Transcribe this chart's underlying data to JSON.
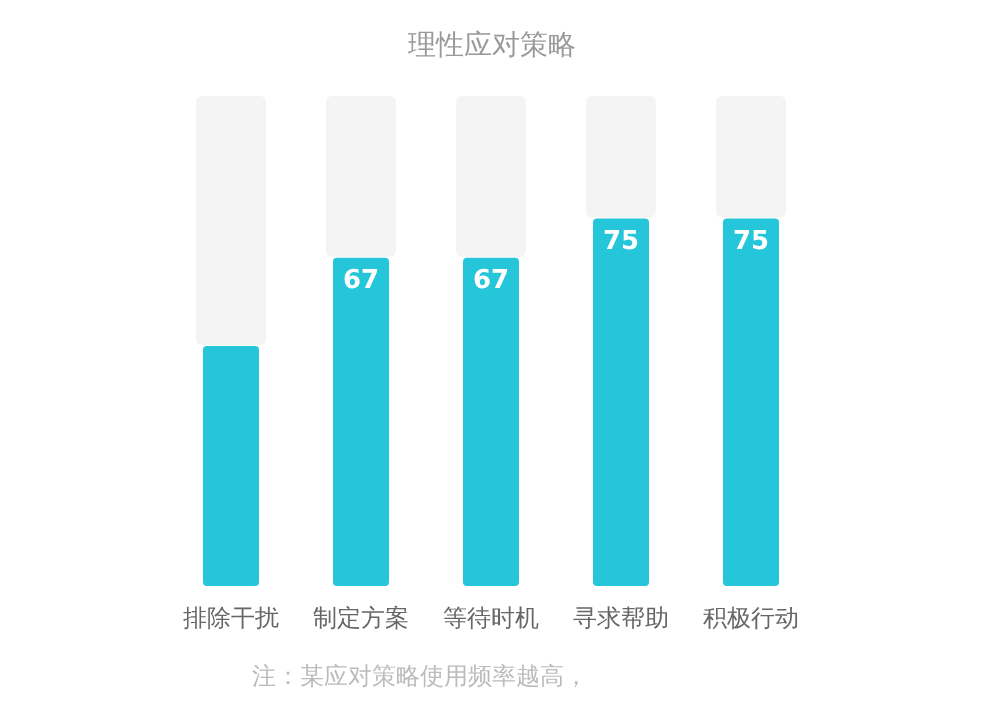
{
  "chart_data": {
    "type": "bar",
    "title": "理性应对策略",
    "categories": [
      "排除干扰",
      "制定方案",
      "等待时机",
      "寻求帮助",
      "积极行动"
    ],
    "values": [
      49,
      67,
      67,
      75,
      75
    ],
    "value_labels": [
      null,
      "67",
      "67",
      "75",
      "75"
    ],
    "color": "#26c6da",
    "ylim": [
      0,
      100
    ],
    "annotations": [
      "注：某应对策略使用频率越高，"
    ]
  }
}
